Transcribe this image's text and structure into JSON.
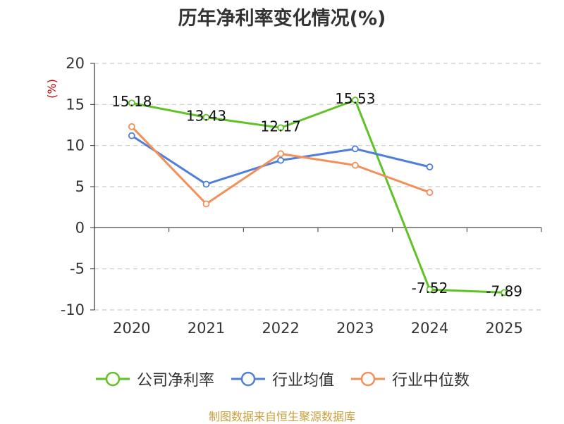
{
  "chart_data": {
    "type": "line",
    "title": "历年净利率变化情况(%)",
    "ylabel": "(%)",
    "xlabel": "",
    "categories": [
      "2020",
      "2021",
      "2022",
      "2023",
      "2024",
      "2025"
    ],
    "ylim": [
      -10,
      20
    ],
    "yticks": [
      20,
      15,
      10,
      5,
      0,
      -5,
      -10
    ],
    "grid": true,
    "legend_position": "bottom",
    "series": [
      {
        "name": "公司净利率",
        "color": "#5fc226",
        "values": [
          15.18,
          13.43,
          12.17,
          15.53,
          -7.52,
          -7.89
        ],
        "labels": [
          "15.18",
          "13.43",
          "12.17",
          "15.53",
          "-7.52",
          "-7.89"
        ]
      },
      {
        "name": "行业均值",
        "color": "#4f7fdb",
        "values": [
          11.2,
          5.3,
          8.2,
          9.6,
          7.4,
          null
        ]
      },
      {
        "name": "行业中位数",
        "color": "#f3905a",
        "values": [
          12.3,
          2.9,
          9.0,
          7.6,
          4.3,
          null
        ]
      }
    ]
  },
  "source_note": "制图数据来自恒生聚源数据库"
}
